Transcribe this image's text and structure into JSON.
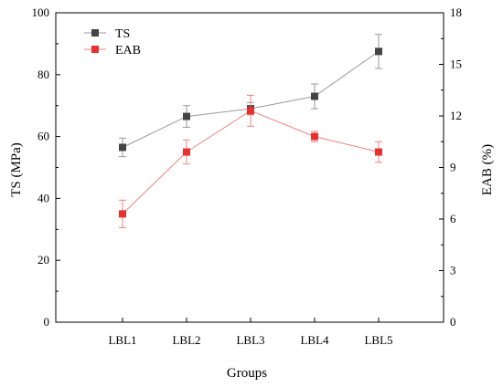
{
  "chart_data": {
    "type": "line",
    "xlabel": "Groups",
    "ylabel_left": "TS (MPa)",
    "ylabel_right": "EAB (%)",
    "categories": [
      "LBL1",
      "LBL2",
      "LBL3",
      "LBL4",
      "LBL5"
    ],
    "ylim_left": [
      0,
      100
    ],
    "yticks_left": [
      "0",
      "20",
      "40",
      "60",
      "80",
      "100"
    ],
    "ylim_right": [
      0,
      18
    ],
    "yticks_right": [
      "0",
      "3",
      "6",
      "9",
      "12",
      "15",
      "18"
    ],
    "grid": false,
    "legend_position": "top-left",
    "series": [
      {
        "name": "TS",
        "axis": "left",
        "color": "#444444",
        "line_color": "#9a9a9a",
        "values": [
          56.5,
          66.5,
          69,
          73,
          87.5
        ],
        "errors": [
          3,
          3.5,
          2,
          4,
          5.5
        ]
      },
      {
        "name": "EAB",
        "axis": "right",
        "color": "#e8312f",
        "line_color": "#f08080",
        "values": [
          6.3,
          9.9,
          12.3,
          10.8,
          9.9
        ],
        "errors": [
          0.8,
          0.7,
          0.9,
          0.3,
          0.6
        ]
      }
    ]
  }
}
